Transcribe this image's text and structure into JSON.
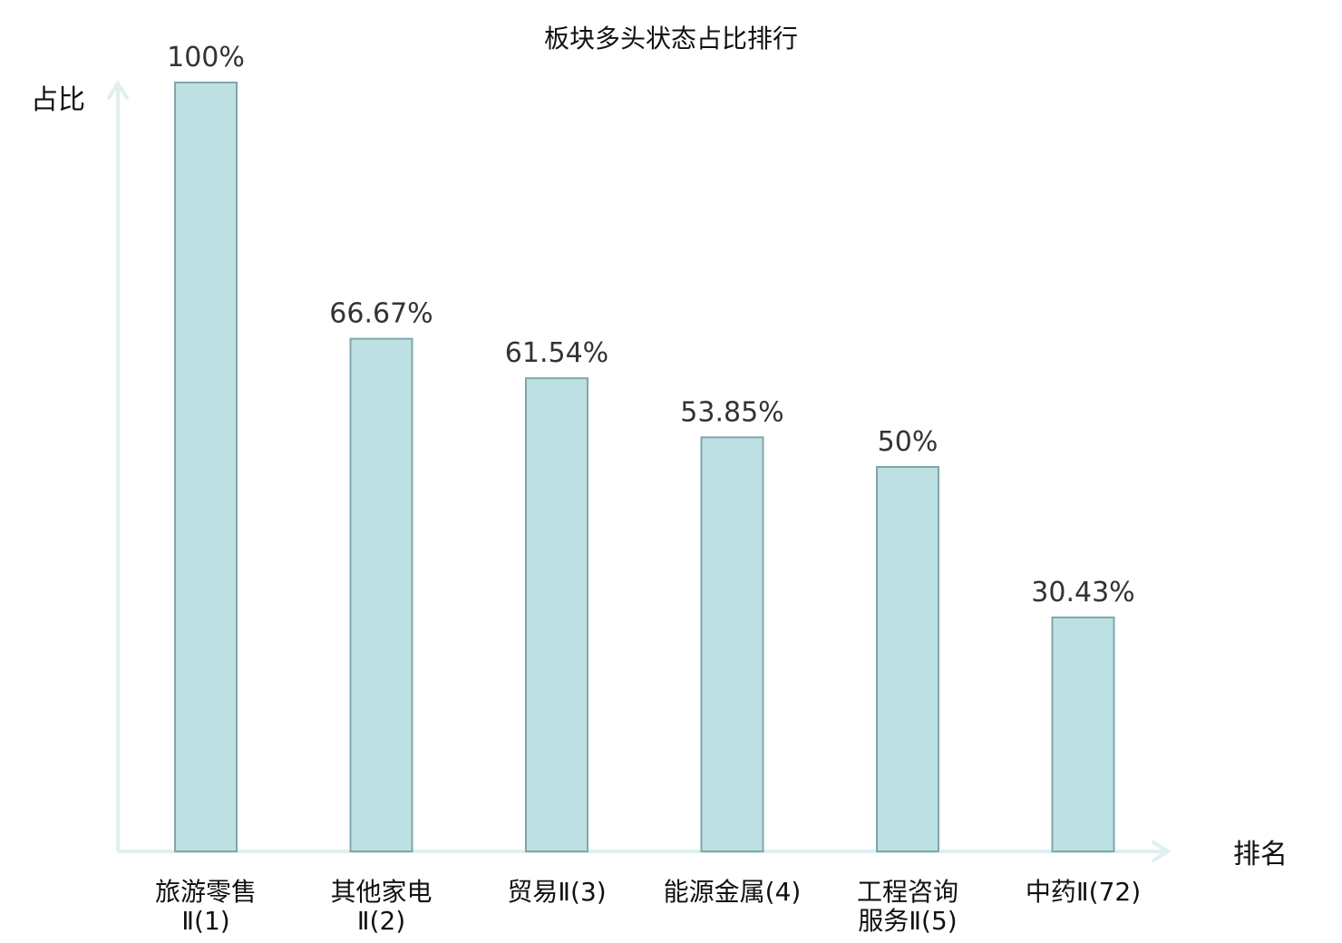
{
  "chart_data": {
    "type": "bar",
    "title": "板块多头状态占比排行",
    "ylabel": "占比",
    "xlabel": "排名",
    "ylim": [
      0,
      100
    ],
    "grid": false,
    "categories": [
      {
        "lines": [
          "旅游零售",
          "Ⅱ(1)"
        ],
        "highlight": false
      },
      {
        "lines": [
          "其他家电",
          "Ⅱ(2)"
        ],
        "highlight": false
      },
      {
        "lines": [
          "贸易Ⅱ(3)"
        ],
        "highlight": false
      },
      {
        "lines": [
          "能源金属(4)"
        ],
        "highlight": false
      },
      {
        "lines": [
          "工程咨询",
          "服务Ⅱ(5)"
        ],
        "highlight": false
      },
      {
        "lines": [
          "中药Ⅱ(72)"
        ],
        "highlight": true
      }
    ],
    "values": [
      100,
      66.67,
      61.54,
      53.85,
      50,
      30.43
    ],
    "value_labels": [
      "100%",
      "66.67%",
      "61.54%",
      "53.85%",
      "50%",
      "30.43%"
    ],
    "colors": {
      "bar_fill": "#bde0e3",
      "bar_stroke": "#7fa6aa",
      "axis": "#dff0ee",
      "highlight_text": "#e02020"
    }
  }
}
